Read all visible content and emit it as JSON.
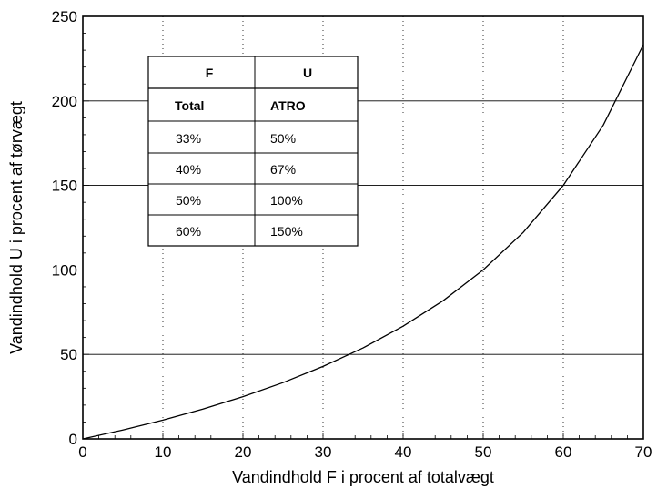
{
  "chart_data": {
    "type": "line",
    "title": "",
    "xlabel": "Vandindhold F i procent af totalvægt",
    "ylabel": "Vandindhold U i procent af tørvægt",
    "xlim": [
      0,
      70
    ],
    "ylim": [
      0,
      250
    ],
    "x_ticks": [
      0,
      10,
      20,
      30,
      40,
      50,
      60,
      70
    ],
    "y_ticks": [
      0,
      50,
      100,
      150,
      200,
      250
    ],
    "grid": true,
    "series": [
      {
        "x": [
          0,
          5,
          10,
          15,
          20,
          25,
          30,
          35,
          40,
          45,
          50,
          55,
          60,
          65,
          70
        ],
        "y": [
          0,
          5.3,
          11.1,
          17.6,
          25,
          33.3,
          42.9,
          53.8,
          66.7,
          81.8,
          100,
          122.2,
          150,
          185.7,
          233.3
        ]
      }
    ],
    "table": {
      "headers": [
        "F",
        "U"
      ],
      "subheaders": [
        "Total",
        "ATRO"
      ],
      "rows": [
        [
          "33%",
          "50%"
        ],
        [
          "40%",
          "67%"
        ],
        [
          "50%",
          "100%"
        ],
        [
          "60%",
          "150%"
        ]
      ]
    }
  }
}
